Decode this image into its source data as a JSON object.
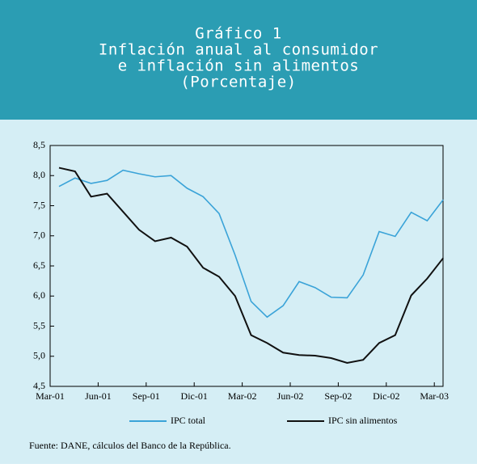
{
  "chart_data": {
    "type": "line",
    "title": [
      "Gráfico 1",
      "Inflación anual al consumidor",
      "e inflación sin alimentos"
    ],
    "subtitle": "(Porcentaje)",
    "categories": [
      "Mar-01",
      null,
      null,
      "Jun-01",
      null,
      null,
      "Sep-01",
      null,
      null,
      "Dic-01",
      null,
      null,
      "Mar-02",
      null,
      null,
      "Jun-02",
      null,
      null,
      "Sep-02",
      null,
      null,
      "Dic-02",
      null,
      null,
      "Mar-03"
    ],
    "series": [
      {
        "name": "IPC total",
        "color": "#3aa3d8",
        "values": [
          7.82,
          7.96,
          7.87,
          7.92,
          8.09,
          8.03,
          7.98,
          8.0,
          7.79,
          7.65,
          7.37,
          6.68,
          5.91,
          5.65,
          5.84,
          6.24,
          6.14,
          5.98,
          5.97,
          6.35,
          7.07,
          6.99,
          7.39,
          7.25,
          7.6
        ]
      },
      {
        "name": "IPC sin alimentos",
        "color": "#111111",
        "values": [
          8.13,
          8.07,
          7.65,
          7.7,
          7.4,
          7.1,
          6.91,
          6.97,
          6.82,
          6.47,
          6.32,
          6.0,
          5.35,
          5.22,
          5.06,
          5.02,
          5.01,
          4.97,
          4.89,
          4.94,
          5.22,
          5.35,
          6.01,
          6.29,
          6.63
        ]
      }
    ],
    "ylim": [
      4.5,
      8.5
    ],
    "yticks": [
      {
        "value": 4.5,
        "label": "4,5"
      },
      {
        "value": 5,
        "label": "5,0"
      },
      {
        "value": 5.5,
        "label": "5,5"
      },
      {
        "value": 6,
        "label": "6,0"
      },
      {
        "value": 6.5,
        "label": "6,5"
      },
      {
        "value": 7,
        "label": "7,0"
      },
      {
        "value": 7.5,
        "label": "7,5"
      },
      {
        "value": 8,
        "label": "8,0"
      },
      {
        "value": 8.5,
        "label": "8,5"
      }
    ],
    "source": "Fuente: DANE, cálculos del Banco de la República."
  }
}
